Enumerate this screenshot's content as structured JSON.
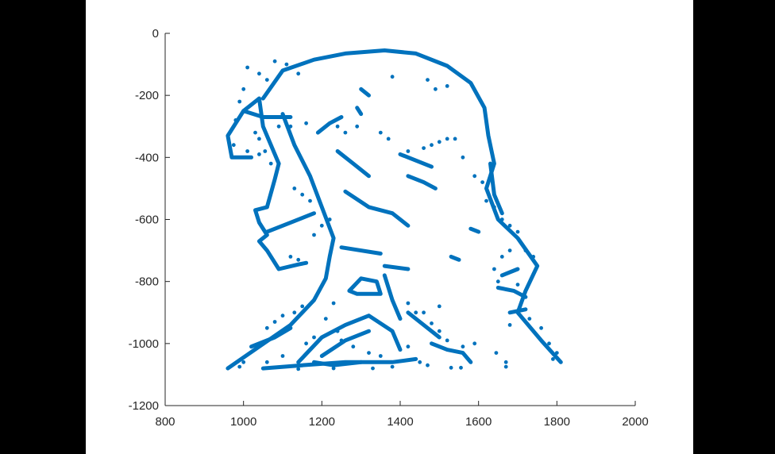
{
  "figure": {
    "background": "#ffffff",
    "letterbox_color": "#000000"
  },
  "chart_data": {
    "type": "scatter",
    "title": "",
    "xlabel": "",
    "ylabel": "",
    "xlim": [
      800,
      2000
    ],
    "ylim": [
      -1200,
      0
    ],
    "grid": false,
    "legend": "none",
    "marker_color": "#0072BD",
    "x_ticks": [
      800,
      1000,
      1200,
      1400,
      1600,
      1800,
      2000
    ],
    "y_ticks": [
      0,
      -200,
      -400,
      -600,
      -800,
      -1000,
      -1200
    ],
    "x_tick_labels": [
      "800",
      "1000",
      "1200",
      "1400",
      "1600",
      "1800",
      "2000"
    ],
    "y_tick_labels": [
      "0",
      "-200",
      "-400",
      "-600",
      "-800",
      "-1000",
      "-1200"
    ],
    "strokes": [
      [
        [
          1050,
          -210
        ],
        [
          1100,
          -120
        ],
        [
          1180,
          -85
        ],
        [
          1260,
          -65
        ],
        [
          1360,
          -55
        ],
        [
          1440,
          -65
        ],
        [
          1520,
          -105
        ],
        [
          1580,
          -160
        ],
        [
          1615,
          -240
        ],
        [
          1625,
          -330
        ],
        [
          1640,
          -420
        ],
        [
          1620,
          -500
        ],
        [
          1650,
          -600
        ],
        [
          1700,
          -660
        ],
        [
          1750,
          -750
        ],
        [
          1720,
          -830
        ],
        [
          1700,
          -900
        ],
        [
          1760,
          -990
        ],
        [
          1810,
          -1060
        ]
      ],
      [
        [
          1040,
          -210
        ],
        [
          1000,
          -250
        ],
        [
          960,
          -330
        ],
        [
          970,
          -400
        ],
        [
          1020,
          -400
        ]
      ],
      [
        [
          1040,
          -210
        ],
        [
          1050,
          -300
        ],
        [
          1090,
          -420
        ]
      ],
      [
        [
          1000,
          -250
        ],
        [
          1050,
          -270
        ],
        [
          1120,
          -270
        ]
      ],
      [
        [
          1090,
          -420
        ],
        [
          1080,
          -470
        ],
        [
          1060,
          -560
        ]
      ],
      [
        [
          1060,
          -560
        ],
        [
          1030,
          -570
        ],
        [
          1040,
          -610
        ],
        [
          1060,
          -650
        ],
        [
          1040,
          -670
        ],
        [
          1060,
          -700
        ],
        [
          1090,
          -760
        ],
        [
          1140,
          -745
        ],
        [
          1160,
          -740
        ]
      ],
      [
        [
          1100,
          -260
        ],
        [
          1130,
          -360
        ],
        [
          1170,
          -460
        ],
        [
          1200,
          -560
        ],
        [
          1230,
          -660
        ],
        [
          1220,
          -720
        ],
        [
          1210,
          -790
        ],
        [
          1180,
          -860
        ],
        [
          1120,
          -940
        ],
        [
          1040,
          -1010
        ],
        [
          960,
          -1080
        ]
      ],
      [
        [
          1060,
          -640
        ],
        [
          1120,
          -610
        ],
        [
          1180,
          -580
        ]
      ],
      [
        [
          1020,
          -1010
        ],
        [
          1080,
          -980
        ],
        [
          1120,
          -950
        ]
      ],
      [
        [
          1140,
          -1060
        ],
        [
          1200,
          -980
        ],
        [
          1260,
          -940
        ],
        [
          1320,
          -910
        ],
        [
          1380,
          -960
        ],
        [
          1400,
          -1020
        ]
      ],
      [
        [
          1200,
          -1040
        ],
        [
          1260,
          -990
        ],
        [
          1320,
          -960
        ]
      ],
      [
        [
          1050,
          -1080
        ],
        [
          1150,
          -1070
        ],
        [
          1260,
          -1060
        ],
        [
          1380,
          -1060
        ],
        [
          1440,
          -1050
        ]
      ],
      [
        [
          1180,
          -1060
        ],
        [
          1230,
          -1070
        ],
        [
          1300,
          -1060
        ]
      ],
      [
        [
          1270,
          -830
        ],
        [
          1300,
          -790
        ],
        [
          1340,
          -800
        ],
        [
          1350,
          -840
        ],
        [
          1290,
          -840
        ],
        [
          1270,
          -830
        ]
      ],
      [
        [
          1360,
          -780
        ],
        [
          1380,
          -860
        ],
        [
          1400,
          -920
        ]
      ],
      [
        [
          1420,
          -900
        ],
        [
          1460,
          -940
        ],
        [
          1500,
          -980
        ]
      ],
      [
        [
          1480,
          -1000
        ],
        [
          1520,
          -1020
        ],
        [
          1560,
          -1030
        ],
        [
          1580,
          -1060
        ]
      ],
      [
        [
          1260,
          -510
        ],
        [
          1320,
          -560
        ],
        [
          1380,
          -580
        ],
        [
          1420,
          -620
        ]
      ],
      [
        [
          1240,
          -380
        ],
        [
          1280,
          -420
        ],
        [
          1320,
          -460
        ]
      ],
      [
        [
          1190,
          -320
        ],
        [
          1220,
          -290
        ],
        [
          1250,
          -270
        ]
      ],
      [
        [
          1300,
          -260
        ],
        [
          1290,
          -240
        ]
      ],
      [
        [
          1400,
          -390
        ],
        [
          1440,
          -410
        ],
        [
          1480,
          -430
        ]
      ],
      [
        [
          1420,
          -460
        ],
        [
          1460,
          -480
        ],
        [
          1490,
          -500
        ]
      ],
      [
        [
          1630,
          -420
        ],
        [
          1640,
          -520
        ],
        [
          1660,
          -580
        ]
      ],
      [
        [
          1580,
          -630
        ],
        [
          1600,
          -640
        ]
      ],
      [
        [
          1250,
          -690
        ],
        [
          1350,
          -710
        ]
      ],
      [
        [
          1360,
          -750
        ],
        [
          1420,
          -760
        ]
      ],
      [
        [
          1650,
          -820
        ],
        [
          1690,
          -830
        ],
        [
          1720,
          -850
        ]
      ],
      [
        [
          1660,
          -780
        ],
        [
          1700,
          -760
        ]
      ],
      [
        [
          1680,
          -900
        ],
        [
          1720,
          -890
        ]
      ],
      [
        [
          1530,
          -720
        ],
        [
          1550,
          -730
        ]
      ],
      [
        [
          1300,
          -180
        ],
        [
          1320,
          -200
        ]
      ]
    ],
    "points": [
      [
        1240,
        -960
      ],
      [
        1250,
        -990
      ],
      [
        1280,
        -1010
      ],
      [
        1320,
        -1030
      ],
      [
        1350,
        -1040
      ],
      [
        1420,
        -1010
      ],
      [
        1450,
        -1060
      ],
      [
        1470,
        -1070
      ],
      [
        1380,
        -1075
      ],
      [
        1330,
        -1080
      ],
      [
        1230,
        -1080
      ],
      [
        1140,
        -1082
      ],
      [
        1670,
        -1075
      ],
      [
        1670,
        -1060
      ],
      [
        1645,
        -1030
      ],
      [
        1590,
        -1000
      ],
      [
        1560,
        -1010
      ],
      [
        1520,
        -990
      ],
      [
        1500,
        -960
      ],
      [
        1480,
        -935
      ],
      [
        1440,
        -900
      ],
      [
        1420,
        -870
      ],
      [
        1150,
        -880
      ],
      [
        1130,
        -900
      ],
      [
        1100,
        -910
      ],
      [
        1080,
        -930
      ],
      [
        1060,
        -950
      ],
      [
        1120,
        -720
      ],
      [
        1140,
        -730
      ],
      [
        1180,
        -650
      ],
      [
        1200,
        -620
      ],
      [
        1220,
        -600
      ],
      [
        1170,
        -540
      ],
      [
        1150,
        -520
      ],
      [
        1130,
        -500
      ],
      [
        1070,
        -420
      ],
      [
        1055,
        -380
      ],
      [
        1040,
        -340
      ],
      [
        1030,
        -320
      ],
      [
        1090,
        -300
      ],
      [
        1120,
        -300
      ],
      [
        1160,
        -290
      ],
      [
        1240,
        -300
      ],
      [
        1260,
        -320
      ],
      [
        1290,
        -300
      ],
      [
        1350,
        -320
      ],
      [
        1370,
        -340
      ],
      [
        1420,
        -380
      ],
      [
        1460,
        -370
      ],
      [
        1480,
        -360
      ],
      [
        1500,
        -350
      ],
      [
        1520,
        -340
      ],
      [
        1540,
        -340
      ],
      [
        1560,
        -400
      ],
      [
        1590,
        -460
      ],
      [
        1610,
        -480
      ],
      [
        1620,
        -540
      ],
      [
        1640,
        -560
      ],
      [
        1660,
        -600
      ],
      [
        1680,
        -620
      ],
      [
        1700,
        -640
      ],
      [
        1720,
        -700
      ],
      [
        1740,
        -720
      ],
      [
        1680,
        -700
      ],
      [
        1660,
        -720
      ],
      [
        1640,
        -760
      ],
      [
        1650,
        -800
      ],
      [
        1700,
        -810
      ],
      [
        1680,
        -940
      ],
      [
        1730,
        -920
      ],
      [
        1760,
        -950
      ],
      [
        1780,
        -1000
      ],
      [
        1800,
        -1030
      ],
      [
        1790,
        -1050
      ],
      [
        1490,
        -180
      ],
      [
        1470,
        -150
      ],
      [
        1520,
        -170
      ],
      [
        1380,
        -140
      ],
      [
        1060,
        -150
      ],
      [
        1040,
        -130
      ],
      [
        1010,
        -110
      ],
      [
        1080,
        -90
      ],
      [
        1110,
        -100
      ],
      [
        1140,
        -130
      ],
      [
        1000,
        -180
      ],
      [
        990,
        -220
      ],
      [
        980,
        -280
      ],
      [
        975,
        -360
      ],
      [
        1010,
        -380
      ],
      [
        1040,
        -390
      ],
      [
        1230,
        -870
      ],
      [
        1210,
        -920
      ],
      [
        1180,
        -980
      ],
      [
        1160,
        -1000
      ],
      [
        1100,
        -1040
      ],
      [
        1060,
        -1060
      ],
      [
        990,
        -1075
      ],
      [
        1000,
        -1060
      ],
      [
        1530,
        -1078
      ],
      [
        1555,
        -1078
      ],
      [
        1460,
        -900
      ],
      [
        1500,
        -880
      ]
    ]
  }
}
